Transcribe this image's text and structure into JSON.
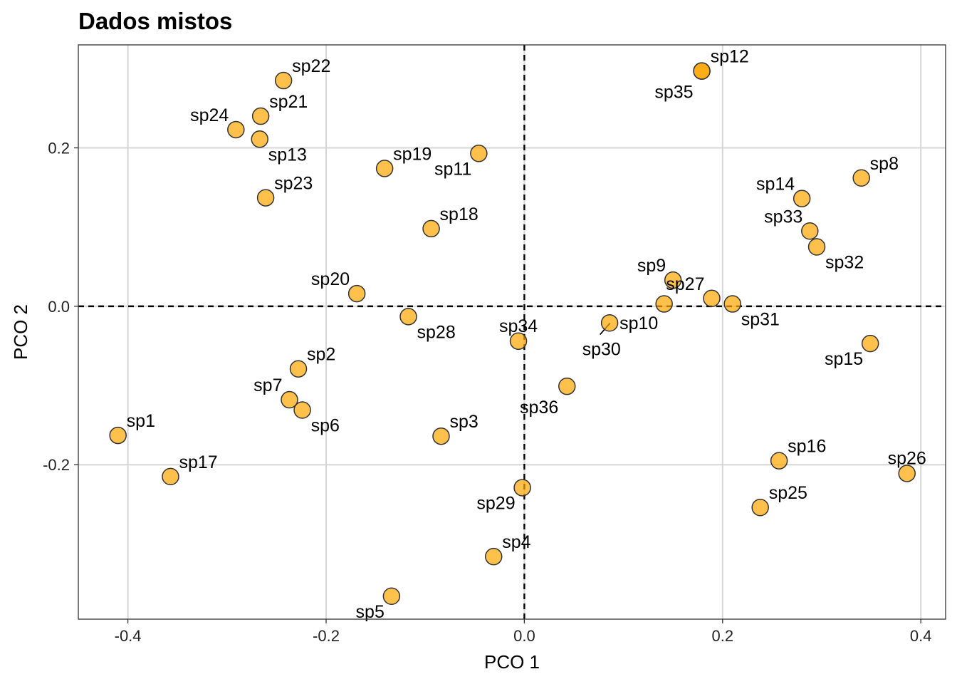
{
  "chart_data": {
    "type": "scatter",
    "title": "Dados mistos",
    "xlabel": "PCO 1",
    "ylabel": "PCO 2",
    "xlim": [
      -0.45,
      0.425
    ],
    "ylim": [
      -0.395,
      0.33
    ],
    "xticks": [
      -0.4,
      -0.2,
      0.0,
      0.2,
      0.4
    ],
    "xtick_labels": [
      "-0.4",
      "-0.2",
      "0.0",
      "0.2",
      "0.4"
    ],
    "yticks": [
      -0.2,
      0.0,
      0.2
    ],
    "ytick_labels": [
      "-0.2",
      "0.0",
      "0.2"
    ],
    "grid": true,
    "reference_lines": {
      "x": 0,
      "y": 0,
      "style": "dashed"
    },
    "point_color": "#FFA500",
    "point_stroke": "#333333",
    "points": [
      {
        "label": "sp1",
        "x": -0.41,
        "y": -0.163,
        "pos": "ur"
      },
      {
        "label": "sp2",
        "x": -0.228,
        "y": -0.079,
        "pos": "ur"
      },
      {
        "label": "sp3",
        "x": -0.084,
        "y": -0.164,
        "pos": "ur"
      },
      {
        "label": "sp4",
        "x": -0.031,
        "y": -0.316,
        "pos": "ur"
      },
      {
        "label": "sp5",
        "x": -0.134,
        "y": -0.366,
        "pos": "ll"
      },
      {
        "label": "sp6",
        "x": -0.224,
        "y": -0.131,
        "pos": "lr"
      },
      {
        "label": "sp7",
        "x": -0.237,
        "y": -0.118,
        "pos": "ul"
      },
      {
        "label": "sp8",
        "x": 0.34,
        "y": 0.162,
        "pos": "ur"
      },
      {
        "label": "sp9",
        "x": 0.15,
        "y": 0.033,
        "pos": "ul"
      },
      {
        "label": "sp10",
        "x": 0.086,
        "y": -0.021,
        "pos": "r"
      },
      {
        "label": "sp11",
        "x": -0.046,
        "y": 0.193,
        "pos": "ll"
      },
      {
        "label": "sp12",
        "x": 0.179,
        "y": 0.297,
        "pos": "ur"
      },
      {
        "label": "sp13",
        "x": -0.267,
        "y": 0.211,
        "pos": "lr"
      },
      {
        "label": "sp14",
        "x": 0.28,
        "y": 0.136,
        "pos": "ul"
      },
      {
        "label": "sp15",
        "x": 0.349,
        "y": -0.047,
        "pos": "ll"
      },
      {
        "label": "sp16",
        "x": 0.257,
        "y": -0.195,
        "pos": "ur"
      },
      {
        "label": "sp17",
        "x": -0.357,
        "y": -0.215,
        "pos": "ur"
      },
      {
        "label": "sp18",
        "x": -0.094,
        "y": 0.098,
        "pos": "ur"
      },
      {
        "label": "sp19",
        "x": -0.141,
        "y": 0.174,
        "pos": "ur"
      },
      {
        "label": "sp20",
        "x": -0.169,
        "y": 0.016,
        "pos": "ul"
      },
      {
        "label": "sp21",
        "x": -0.266,
        "y": 0.24,
        "pos": "ur"
      },
      {
        "label": "sp22",
        "x": -0.243,
        "y": 0.285,
        "pos": "ur"
      },
      {
        "label": "sp23",
        "x": -0.261,
        "y": 0.137,
        "pos": "ur"
      },
      {
        "label": "sp24",
        "x": -0.291,
        "y": 0.223,
        "pos": "ul"
      },
      {
        "label": "sp25",
        "x": 0.238,
        "y": -0.254,
        "pos": "ur"
      },
      {
        "label": "sp26",
        "x": 0.386,
        "y": -0.211,
        "pos": "u"
      },
      {
        "label": "sp27",
        "x": 0.189,
        "y": 0.01,
        "pos": "ul"
      },
      {
        "label": "sp28",
        "x": -0.117,
        "y": -0.013,
        "pos": "lr"
      },
      {
        "label": "sp29",
        "x": -0.002,
        "y": -0.229,
        "pos": "ll"
      },
      {
        "label": "sp30",
        "x": 0.141,
        "y": 0.003,
        "pos": "leader"
      },
      {
        "label": "sp31",
        "x": 0.21,
        "y": 0.003,
        "pos": "lr"
      },
      {
        "label": "sp32",
        "x": 0.295,
        "y": 0.075,
        "pos": "lr"
      },
      {
        "label": "sp33",
        "x": 0.288,
        "y": 0.095,
        "pos": "ul"
      },
      {
        "label": "sp34",
        "x": -0.006,
        "y": -0.044,
        "pos": "u"
      },
      {
        "label": "sp35",
        "x": 0.179,
        "y": 0.297,
        "pos": "l"
      },
      {
        "label": "sp36",
        "x": 0.043,
        "y": -0.101,
        "pos": "l"
      }
    ]
  }
}
